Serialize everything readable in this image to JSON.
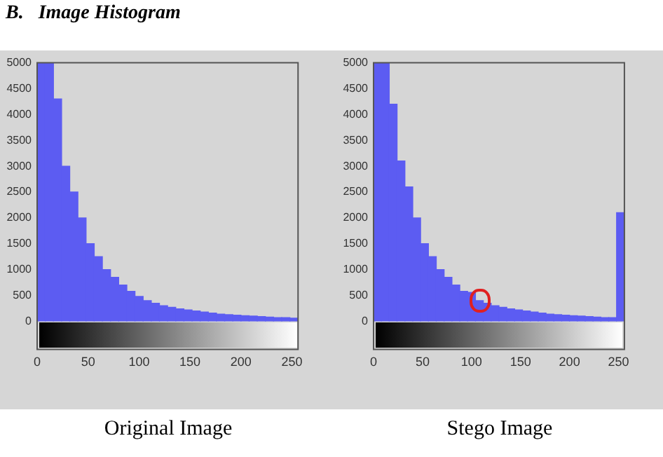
{
  "chart_data": [
    {
      "type": "histogram",
      "title": "B.   Image Histogram",
      "bins": [
        0,
        8,
        16,
        24,
        32,
        40,
        48,
        56,
        64,
        72,
        80,
        88,
        96,
        104,
        112,
        120,
        128,
        136,
        144,
        152,
        160,
        168,
        176,
        184,
        192,
        200,
        208,
        216,
        224,
        232,
        240,
        248,
        256
      ],
      "values": [
        5000,
        5000,
        4300,
        3000,
        2500,
        2000,
        1500,
        1250,
        1000,
        850,
        700,
        580,
        480,
        400,
        350,
        300,
        270,
        240,
        220,
        200,
        180,
        160,
        140,
        130,
        120,
        110,
        100,
        90,
        80,
        70,
        70,
        60
      ],
      "color": "#5c5cf2",
      "xlim": [
        0,
        256
      ],
      "xticks": [
        0,
        50,
        100,
        150,
        200,
        250
      ],
      "ylim": [
        0,
        5000
      ],
      "yticks": [
        0,
        500,
        1000,
        1500,
        2000,
        2500,
        3000,
        3500,
        4000,
        4500,
        5000
      ],
      "grid": false,
      "annotations": [
        "Original Image"
      ]
    },
    {
      "type": "histogram",
      "bins": [
        0,
        8,
        16,
        24,
        32,
        40,
        48,
        56,
        64,
        72,
        80,
        88,
        96,
        104,
        112,
        120,
        128,
        136,
        144,
        152,
        160,
        168,
        176,
        184,
        192,
        200,
        208,
        216,
        224,
        232,
        240,
        248,
        256
      ],
      "values": [
        5000,
        5000,
        4200,
        3100,
        2600,
        2000,
        1500,
        1250,
        1000,
        850,
        700,
        580,
        560,
        400,
        350,
        300,
        270,
        240,
        220,
        200,
        180,
        160,
        140,
        130,
        120,
        110,
        100,
        90,
        80,
        70,
        70,
        2100
      ],
      "color": "#5c5cf2",
      "xlim": [
        0,
        256
      ],
      "xticks": [
        0,
        50,
        100,
        150,
        200,
        250
      ],
      "ylim": [
        0,
        5000
      ],
      "yticks": [
        0,
        500,
        1000,
        1500,
        2000,
        2500,
        3000,
        3500,
        4000,
        4500,
        5000
      ],
      "grid": false,
      "annotations": [
        "Stego Image"
      ]
    }
  ]
}
